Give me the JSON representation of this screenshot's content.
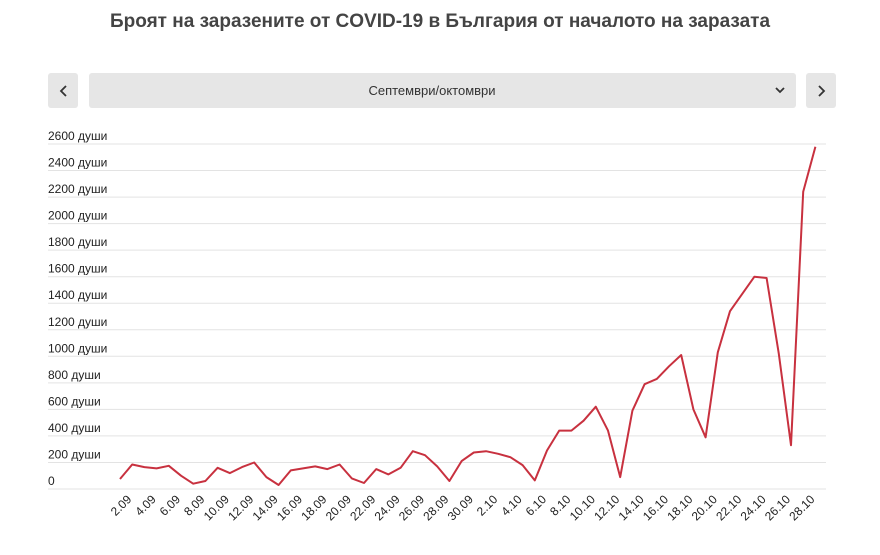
{
  "header": {
    "title": "Броят на заразените от COVID-19 в България от началото на заразата",
    "period": "Септември/октомври"
  },
  "chart_data": {
    "type": "line",
    "categories": [
      null,
      "2.09",
      null,
      "4.09",
      null,
      "6.09",
      null,
      "8.09",
      null,
      "10.09",
      null,
      "12.09",
      null,
      "14.09",
      null,
      "16.09",
      null,
      "18.09",
      null,
      "20.09",
      null,
      "22.09",
      null,
      "24.09",
      null,
      "26.09",
      null,
      "28.09",
      null,
      "30.09",
      null,
      "2.10",
      null,
      "4.10",
      null,
      "6.10",
      null,
      "8.10",
      null,
      "10.10",
      null,
      "12.10",
      null,
      "14.10",
      null,
      "16.10",
      null,
      "18.10",
      null,
      "20.10",
      null,
      "22.10",
      null,
      "24.10",
      null,
      "26.10",
      null,
      "28.10"
    ],
    "series": [
      {
        "color": "#c8313f",
        "values": [
          75,
          185,
          165,
          155,
          175,
          100,
          40,
          60,
          160,
          120,
          165,
          200,
          90,
          30,
          140,
          155,
          170,
          150,
          185,
          80,
          45,
          150,
          110,
          160,
          285,
          255,
          170,
          60,
          210,
          275,
          285,
          265,
          240,
          180,
          65,
          290,
          440,
          440,
          515,
          620,
          440,
          90,
          590,
          790,
          830,
          925,
          1010,
          600,
          390,
          1030,
          1340,
          1470,
          1600,
          1590,
          1020,
          330,
          2240,
          2580
        ]
      }
    ],
    "ylim": [
      0,
      2600
    ],
    "yticks": [
      0,
      {
        "value": 200,
        "label": "200 души"
      },
      {
        "value": 400,
        "label": "400 души"
      },
      {
        "value": 600,
        "label": "600 души"
      },
      {
        "value": 800,
        "label": "800 души"
      },
      {
        "value": 1000,
        "label": "1000 души"
      },
      {
        "value": 1200,
        "label": "1200 души"
      },
      {
        "value": 1400,
        "label": "1400 души"
      },
      {
        "value": 1600,
        "label": "1600 души"
      },
      {
        "value": 1800,
        "label": "1800 души"
      },
      {
        "value": 2000,
        "label": "2000 души"
      },
      {
        "value": 2200,
        "label": "2200 души"
      },
      {
        "value": 2400,
        "label": "2400 души"
      },
      {
        "value": 2600,
        "label": "2600 души"
      }
    ],
    "grid": true
  }
}
